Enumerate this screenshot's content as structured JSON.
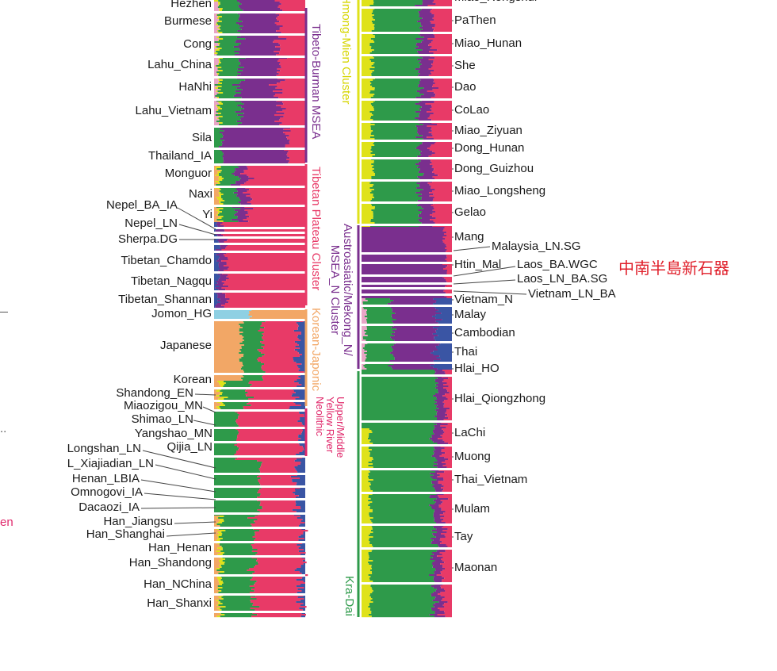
{
  "chart_data": {
    "type": "stacked-bar-admixture",
    "component_colors": [
      "#f2a766",
      "#2e9a4a",
      "#e83a67",
      "#7a2f8e",
      "#3a55a4",
      "#dfe21a",
      "#8fd0e3",
      "#e9a5c6"
    ],
    "left_panel_labels": [
      {
        "text": "Hezhen",
        "y": 5
      },
      {
        "text": "Burmese",
        "y": 27
      },
      {
        "text": "Cong",
        "y": 56
      },
      {
        "text": "Lahu_China",
        "y": 82
      },
      {
        "text": "HaNhi",
        "y": 110
      },
      {
        "text": "Lahu_Vietnam",
        "y": 140
      },
      {
        "text": "Sila",
        "y": 174
      },
      {
        "text": "Thailand_IA",
        "y": 197
      },
      {
        "text": "Monguor",
        "y": 219
      },
      {
        "text": "Naxi",
        "y": 245
      },
      {
        "text": "Nepel_BA_IA",
        "y": 259,
        "pointer": true
      },
      {
        "text": "Yi",
        "y": 271
      },
      {
        "text": "Nepel_LN",
        "y": 282,
        "pointer": true
      },
      {
        "text": "Sherpa.DG",
        "y": 302,
        "pointer": true
      },
      {
        "text": "Tibetan_Chamdo",
        "y": 329
      },
      {
        "text": "Tibetan_Nagqu",
        "y": 355
      },
      {
        "text": "Tibetan_Shannan",
        "y": 378
      },
      {
        "text": "Jomon_HG",
        "y": 396
      },
      {
        "text": "Japanese",
        "y": 436
      },
      {
        "text": "Korean",
        "y": 479
      },
      {
        "text": "Shandong_EN",
        "y": 496,
        "pointer": true
      },
      {
        "text": "Miaozigou_MN",
        "y": 512,
        "pointer": true
      },
      {
        "text": "Shimao_LN",
        "y": 529,
        "pointer": true
      },
      {
        "text": "Yangshao_MN",
        "y": 547
      },
      {
        "text": "Qijia_LN",
        "y": 564
      },
      {
        "text": "Longshan_LN",
        "y": 566,
        "pointer": true
      },
      {
        "text": "L_Xiajiadian_LN",
        "y": 585,
        "pointer": true
      },
      {
        "text": "Henan_LBIA",
        "y": 604,
        "pointer": true
      },
      {
        "text": "Omnogovi_IA",
        "y": 621,
        "pointer": true
      },
      {
        "text": "Dacaozi_IA",
        "y": 640,
        "pointer": true
      },
      {
        "text": "Han_Jiangsu",
        "y": 658,
        "pointer": true
      },
      {
        "text": "Han_Shanghai",
        "y": 674,
        "pointer": true
      },
      {
        "text": "Han_Henan",
        "y": 691
      },
      {
        "text": "Han_Shandong",
        "y": 710
      },
      {
        "text": "Han_NChina",
        "y": 737
      },
      {
        "text": "Han_Shanxi",
        "y": 761
      }
    ],
    "right_panel_labels": [
      {
        "text": "Miao_Rongshui",
        "y": -3
      },
      {
        "text": "PaThen",
        "y": 26
      },
      {
        "text": "Miao_Hunan",
        "y": 55
      },
      {
        "text": "She",
        "y": 83
      },
      {
        "text": "Dao",
        "y": 110
      },
      {
        "text": "CoLao",
        "y": 139
      },
      {
        "text": "Miao_Ziyuan",
        "y": 165
      },
      {
        "text": "Dong_Hunan",
        "y": 187
      },
      {
        "text": "Dong_Guizhou",
        "y": 213
      },
      {
        "text": "Miao_Longsheng",
        "y": 241
      },
      {
        "text": "Gelao",
        "y": 268
      },
      {
        "text": "Mang",
        "y": 299
      },
      {
        "text": "Malaysia_LN.SG",
        "y": 311,
        "pointer": true
      },
      {
        "text": "Htin_Mal",
        "y": 334
      },
      {
        "text": "Laos_BA.WGC",
        "y": 334,
        "pointer": true
      },
      {
        "text": "Laos_LN_BA.SG",
        "y": 352,
        "pointer": true
      },
      {
        "text": "Vietnam_LN_BA",
        "y": 371,
        "pointer": true
      },
      {
        "text": "Vietnam_N",
        "y": 378
      },
      {
        "text": "Malay",
        "y": 397
      },
      {
        "text": "Cambodian",
        "y": 420
      },
      {
        "text": "Thai",
        "y": 444
      },
      {
        "text": "Hlai_HO",
        "y": 465
      },
      {
        "text": "Hlai_Qiongzhong",
        "y": 503
      },
      {
        "text": "LaChi",
        "y": 546
      },
      {
        "text": "Muong",
        "y": 576
      },
      {
        "text": "Thai_Vietnam",
        "y": 605
      },
      {
        "text": "Mulam",
        "y": 642
      },
      {
        "text": "Tay",
        "y": 677
      },
      {
        "text": "Maonan",
        "y": 716
      }
    ],
    "cluster_labels": [
      {
        "text": "Tibeto-Burman MSEA",
        "color": "#7a2f8e"
      },
      {
        "text": "Tibetan Plateau Cluster",
        "color": "#e83a67"
      },
      {
        "text": "Korean-Japonic",
        "color": "#f2a766"
      },
      {
        "text": "Upper/Middle Yellow River Neolithic",
        "color": "#e0286b"
      },
      {
        "text": "Hmong-Mien Cluster",
        "color": "#d6d600"
      },
      {
        "text": "Austroasiatic/Mekong_N/ MSEA_N Cluster",
        "color": "#7a2f8e"
      },
      {
        "text": "Kra-Dai",
        "color": "#2e9a4a"
      }
    ],
    "annotation": {
      "text": "中南半島新石器",
      "color": "#e01f2a"
    }
  }
}
